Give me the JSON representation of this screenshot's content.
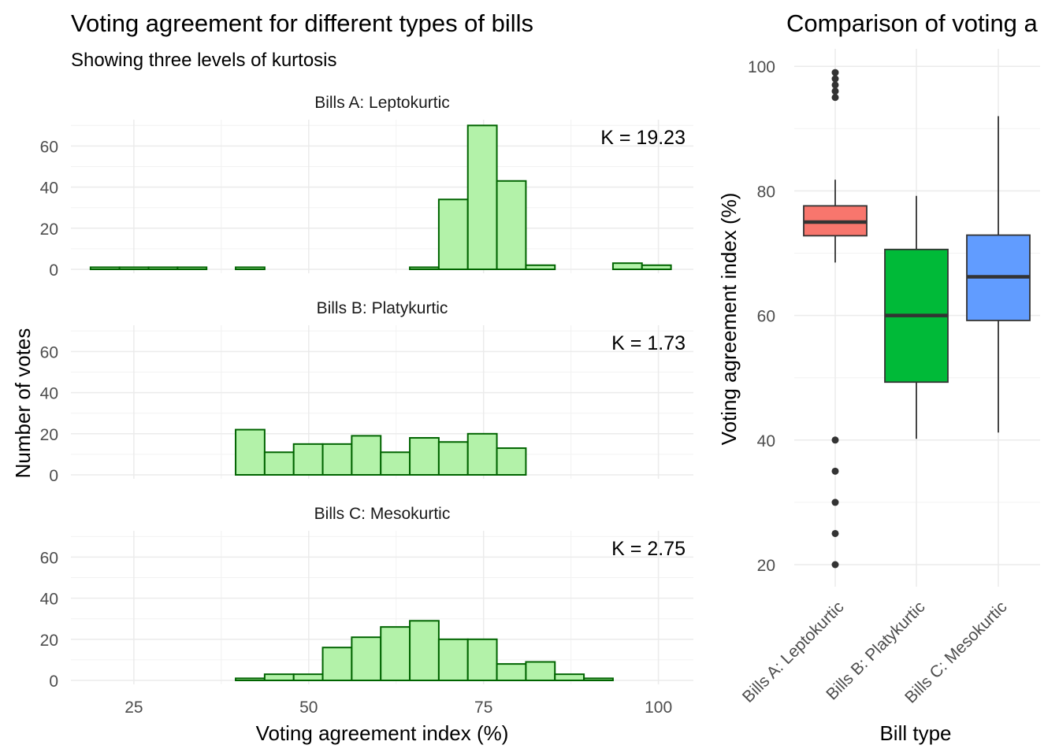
{
  "chart_data": [
    {
      "type": "bar",
      "title": "Voting agreement for different types of bills",
      "subtitle": "Showing three levels of kurtosis",
      "xlabel": "Voting agreement index (%)",
      "ylabel": "Number of votes",
      "xlim": [
        16,
        105
      ],
      "ylim": [
        0,
        70
      ],
      "x_ticks": [
        25,
        50,
        75,
        100
      ],
      "y_ticks": [
        0,
        20,
        40,
        60
      ],
      "bin_width": 4.15,
      "bin_start": 18.8,
      "grid": true,
      "bar_fill": "#b3f2a9",
      "bar_stroke": "#006400",
      "panels": [
        {
          "label": "Bills A: Leptokurtic",
          "annotation": "K = 19.23",
          "counts": [
            1,
            1,
            1,
            1,
            0,
            1,
            0,
            0,
            0,
            0,
            0,
            1,
            34,
            70,
            43,
            2,
            0,
            0,
            3,
            2
          ]
        },
        {
          "label": "Bills B: Platykurtic",
          "annotation": "K = 1.73",
          "counts": [
            0,
            0,
            0,
            0,
            0,
            22,
            11,
            15,
            15,
            19,
            11,
            18,
            16,
            20,
            13,
            0,
            0,
            0,
            0,
            0
          ]
        },
        {
          "label": "Bills C: Mesokurtic",
          "annotation": "K = 2.75",
          "counts": [
            0,
            0,
            0,
            0,
            0,
            1,
            3,
            3,
            16,
            21,
            26,
            29,
            20,
            20,
            8,
            9,
            3,
            1,
            0,
            0
          ]
        }
      ]
    },
    {
      "type": "box",
      "title": "Comparison of voting a",
      "xlabel": "Bill type",
      "ylabel": "Voting agreement index (%)",
      "ylim": [
        16,
        103
      ],
      "y_ticks": [
        20,
        40,
        60,
        80,
        100
      ],
      "grid": true,
      "categories": [
        "Bills A: Leptokurtic",
        "Bills B: Platykurtic",
        "Bills C: Mesokurtic"
      ],
      "boxes": [
        {
          "name": "Bills A: Leptokurtic",
          "color": "#f8766d",
          "whisker_low": 68.5,
          "q1": 72.8,
          "median": 75.0,
          "q3": 77.6,
          "whisker_high": 81.8,
          "outliers": [
            20,
            25,
            30,
            35,
            40,
            95,
            96,
            97,
            98,
            99
          ]
        },
        {
          "name": "Bills B: Platykurtic",
          "color": "#00ba38",
          "whisker_low": 40.2,
          "q1": 49.3,
          "median": 60.0,
          "q3": 70.6,
          "whisker_high": 79.2,
          "outliers": []
        },
        {
          "name": "Bills C: Mesokurtic",
          "color": "#619cff",
          "whisker_low": 41.2,
          "q1": 59.2,
          "median": 66.2,
          "q3": 72.9,
          "whisker_high": 92.0,
          "outliers": []
        }
      ]
    }
  ]
}
